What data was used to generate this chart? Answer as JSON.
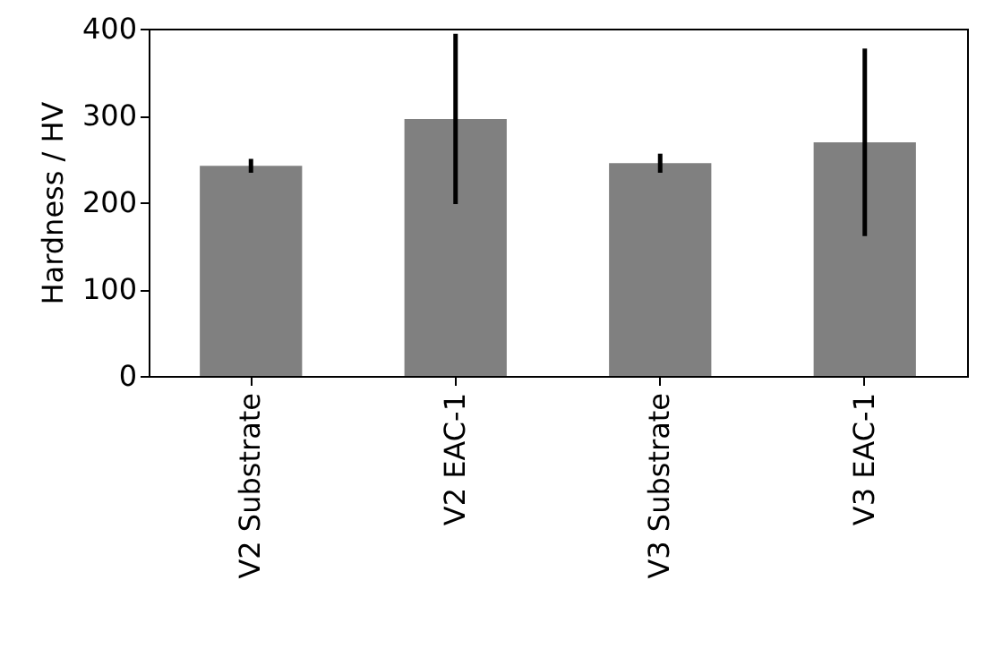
{
  "chart_data": {
    "type": "bar",
    "ylabel": "Hardness / HV",
    "categories": [
      "V2 Substrate",
      "V2 EAC-1",
      "V3 Substrate",
      "V3 EAC-1"
    ],
    "values": [
      242,
      296,
      245,
      269
    ],
    "errors": [
      8,
      98,
      11,
      108
    ],
    "color": "#808080",
    "ylim": [
      0,
      400
    ],
    "yticks": [
      0,
      100,
      200,
      300,
      400
    ],
    "grid": false
  }
}
